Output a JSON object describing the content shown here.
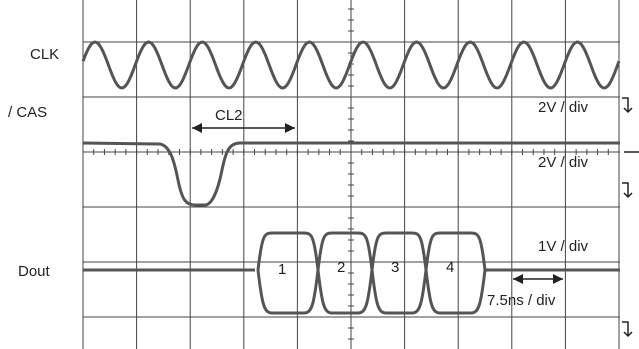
{
  "traces": [
    {
      "label": "CLK",
      "scale": "2V / div"
    },
    {
      "label": "/ CAS",
      "scale": "2V / div"
    },
    {
      "label": "Dout",
      "scale": "1V / div"
    }
  ],
  "latency": "CL2",
  "timebase": "7.5ns / div",
  "data_words": [
    "1",
    "2",
    "3",
    "4"
  ]
}
